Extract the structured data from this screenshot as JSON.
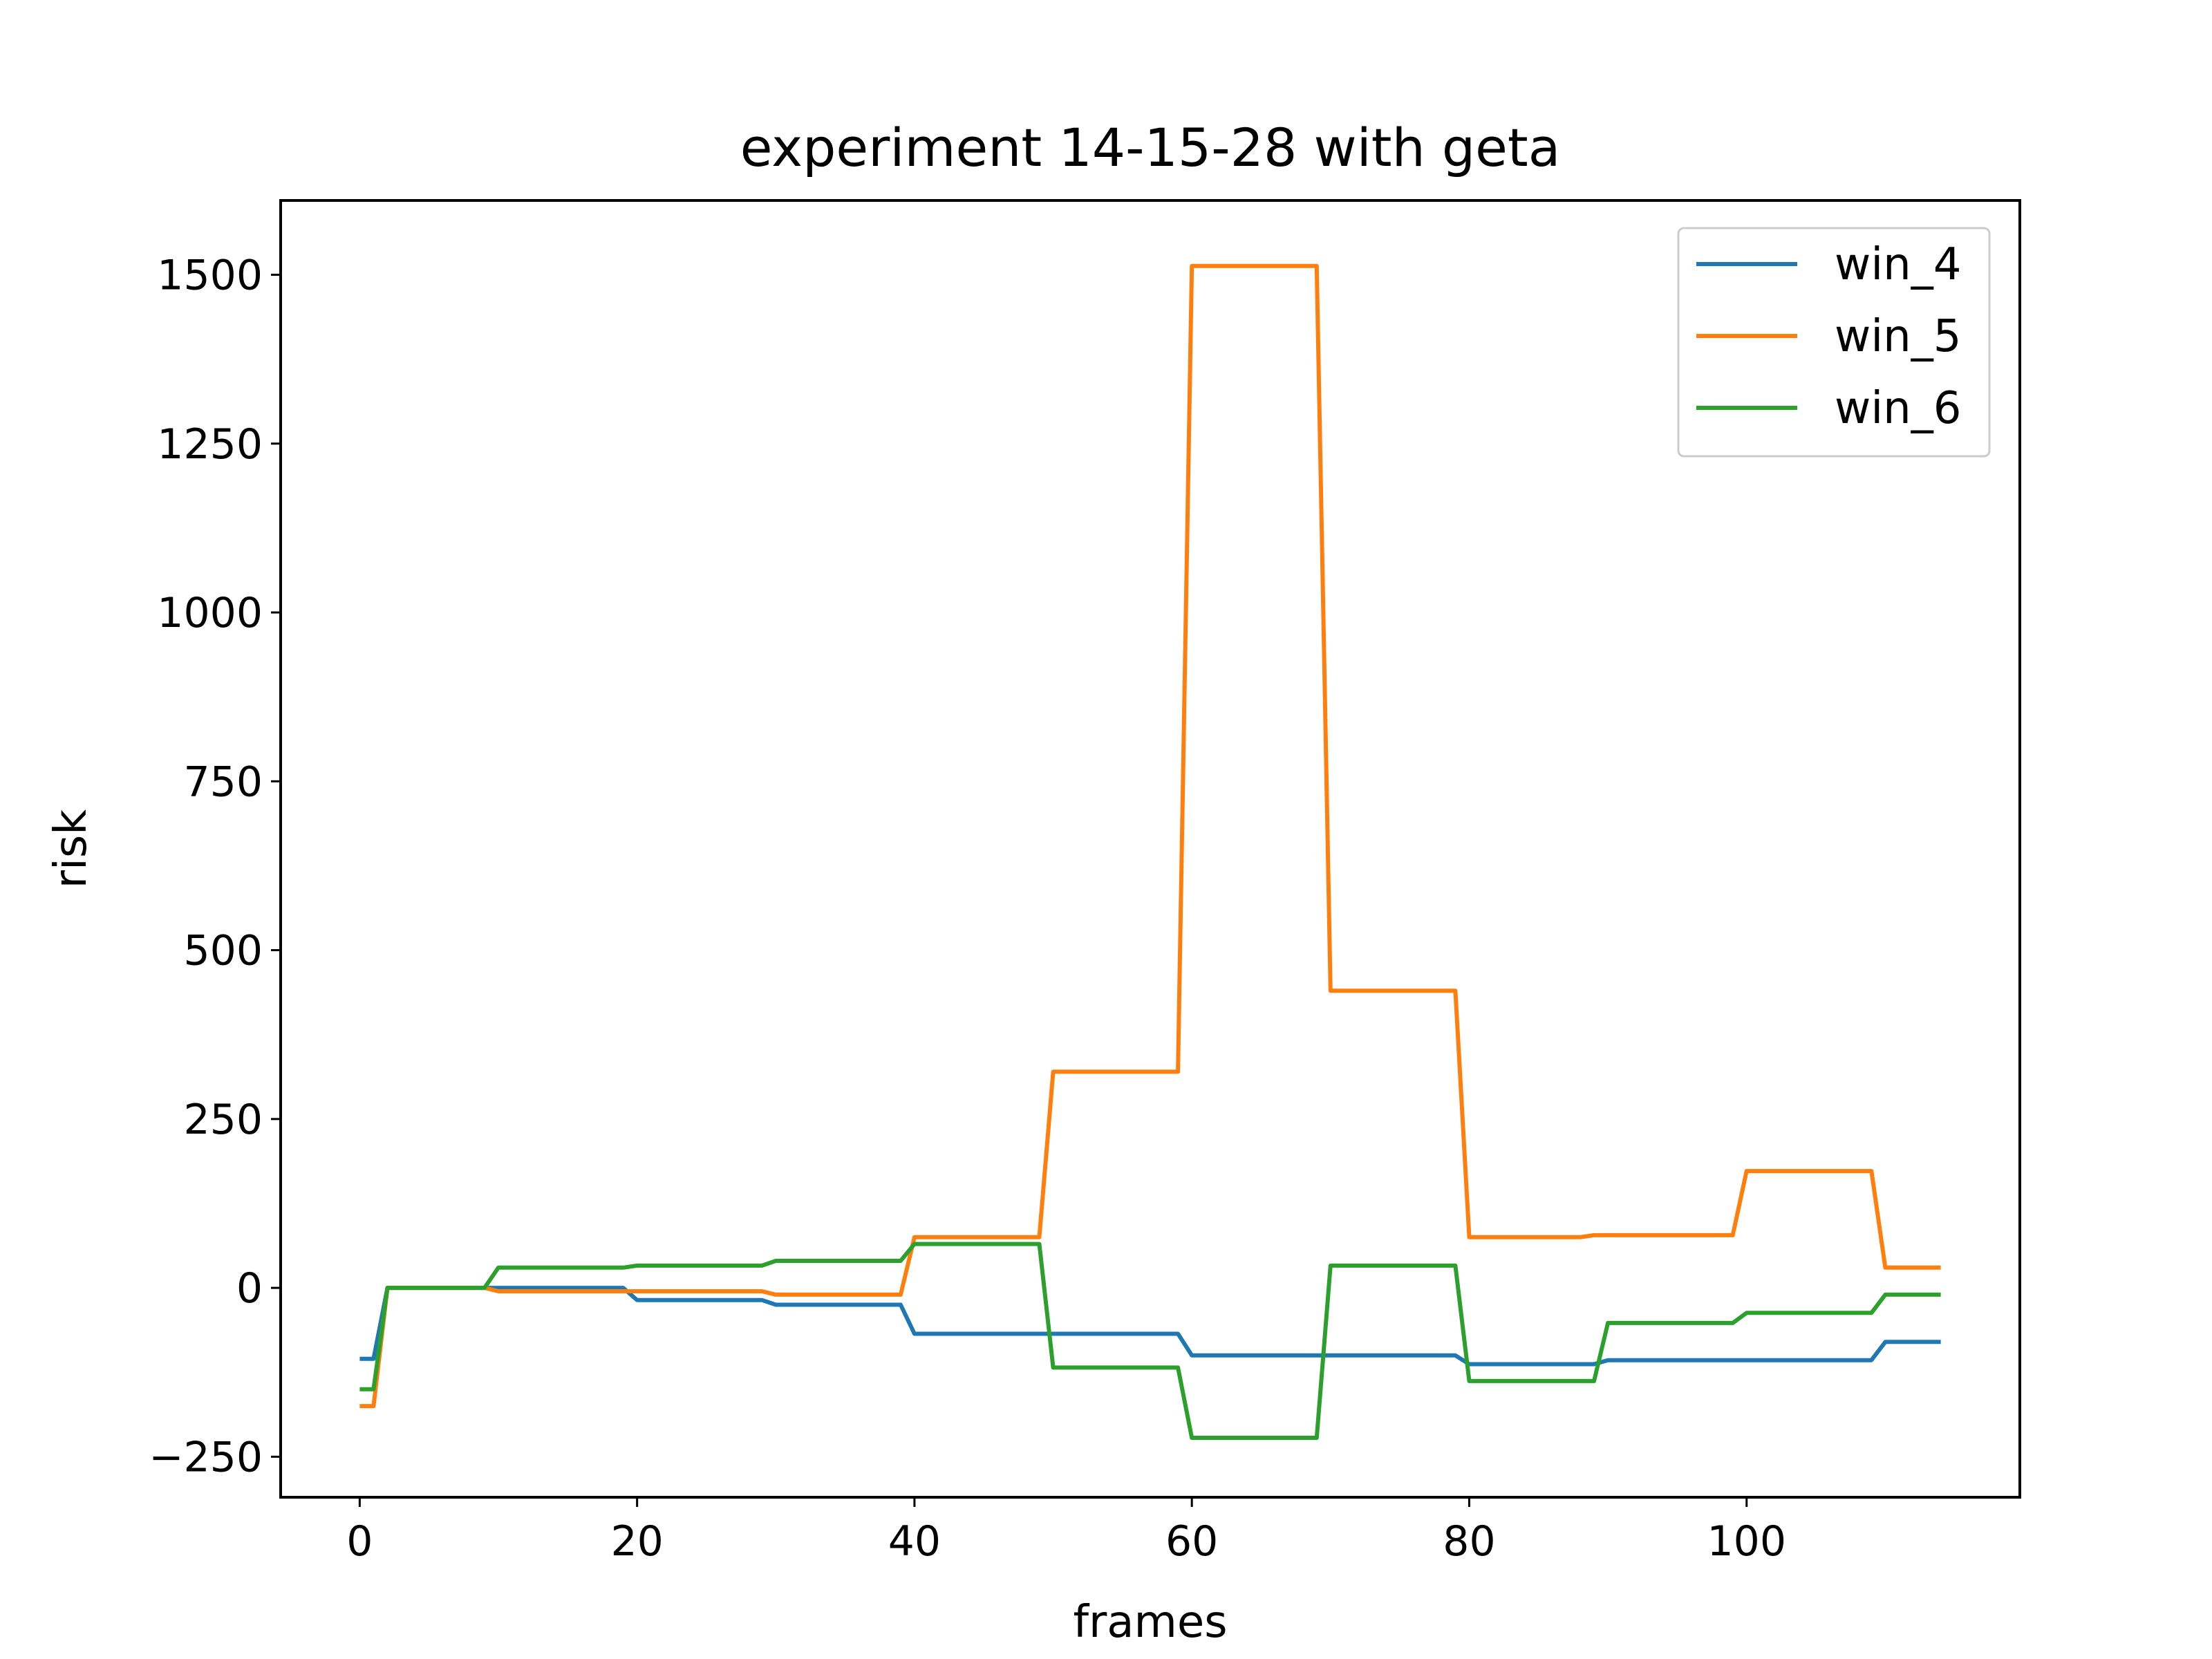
{
  "chart_data": {
    "type": "line",
    "title": "experiment 14-15-28 with geta",
    "xlabel": "frames",
    "ylabel": "risk",
    "xlim": [
      -5.7,
      119.7
    ],
    "ylim": [
      -310,
      1610
    ],
    "xticks": [
      0,
      20,
      40,
      60,
      80,
      100
    ],
    "yticks": [
      -250,
      0,
      250,
      500,
      750,
      1000,
      1250,
      1500
    ],
    "xtick_labels": [
      "0",
      "20",
      "40",
      "60",
      "80",
      "100"
    ],
    "ytick_labels": [
      "−250",
      "0",
      "250",
      "500",
      "750",
      "1000",
      "1250",
      "1500"
    ],
    "grid": false,
    "legend_position": "upper right",
    "x_range": [
      0,
      114
    ],
    "series": [
      {
        "name": "win_4",
        "color": "#1f77b4",
        "segments": [
          {
            "from": 0,
            "to": 1,
            "value": -105
          },
          {
            "from": 2,
            "to": 19,
            "value": 0
          },
          {
            "from": 20,
            "to": 29,
            "value": -18
          },
          {
            "from": 30,
            "to": 39,
            "value": -25
          },
          {
            "from": 40,
            "to": 59,
            "value": -68
          },
          {
            "from": 60,
            "to": 79,
            "value": -100
          },
          {
            "from": 80,
            "to": 89,
            "value": -113
          },
          {
            "from": 90,
            "to": 109,
            "value": -107
          },
          {
            "from": 110,
            "to": 114,
            "value": -80
          }
        ]
      },
      {
        "name": "win_5",
        "color": "#ff7f0e",
        "segments": [
          {
            "from": 0,
            "to": 1,
            "value": -175
          },
          {
            "from": 2,
            "to": 9,
            "value": 0
          },
          {
            "from": 10,
            "to": 29,
            "value": -5
          },
          {
            "from": 30,
            "to": 39,
            "value": -10
          },
          {
            "from": 40,
            "to": 49,
            "value": 75
          },
          {
            "from": 50,
            "to": 59,
            "value": 320
          },
          {
            "from": 60,
            "to": 69,
            "value": 1513
          },
          {
            "from": 70,
            "to": 79,
            "value": 440
          },
          {
            "from": 80,
            "to": 88,
            "value": 75
          },
          {
            "from": 89,
            "to": 99,
            "value": 78
          },
          {
            "from": 100,
            "to": 109,
            "value": 173
          },
          {
            "from": 110,
            "to": 114,
            "value": 30
          }
        ]
      },
      {
        "name": "win_6",
        "color": "#2ca02c",
        "segments": [
          {
            "from": 0,
            "to": 1,
            "value": -150
          },
          {
            "from": 2,
            "to": 9,
            "value": 0
          },
          {
            "from": 10,
            "to": 19,
            "value": 30
          },
          {
            "from": 20,
            "to": 29,
            "value": 33
          },
          {
            "from": 30,
            "to": 39,
            "value": 40
          },
          {
            "from": 40,
            "to": 49,
            "value": 65
          },
          {
            "from": 50,
            "to": 59,
            "value": -118
          },
          {
            "from": 60,
            "to": 69,
            "value": -222
          },
          {
            "from": 70,
            "to": 79,
            "value": 33
          },
          {
            "from": 80,
            "to": 89,
            "value": -138
          },
          {
            "from": 90,
            "to": 99,
            "value": -52
          },
          {
            "from": 100,
            "to": 109,
            "value": -37
          },
          {
            "from": 110,
            "to": 114,
            "value": -10
          }
        ]
      }
    ]
  }
}
